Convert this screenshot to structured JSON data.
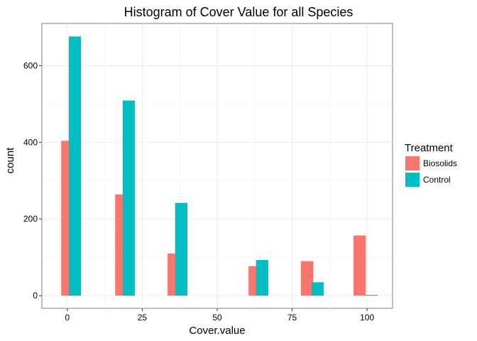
{
  "chart_data": {
    "type": "bar",
    "title": "Histogram of Cover Value for all Species",
    "xlabel": "Cover.value",
    "ylabel": "count",
    "xlim": [
      -8.5,
      108.5
    ],
    "ylim": [
      -33,
      710
    ],
    "x_ticks": [
      0,
      25,
      50,
      75,
      100
    ],
    "x_tick_labels": [
      "0",
      "25",
      "50",
      "75",
      "100"
    ],
    "y_ticks": [
      0,
      200,
      400,
      600
    ],
    "y_tick_labels": [
      "0",
      "200",
      "400",
      "600"
    ],
    "grid": true,
    "legend": {
      "title": "Treatment",
      "position": "right"
    },
    "bar_width": 4.1,
    "series": [
      {
        "name": "Biosolids",
        "color": "#F8766D",
        "x": [
          0,
          18,
          35.5,
          62.5,
          80,
          97.5
        ],
        "values": [
          404,
          264,
          110,
          77,
          90,
          157
        ]
      },
      {
        "name": "Control",
        "color": "#00BFC4",
        "x": [
          2.5,
          20.5,
          38,
          65,
          83.5,
          101.5
        ],
        "values": [
          676,
          509,
          242,
          93,
          35,
          2
        ]
      }
    ]
  }
}
